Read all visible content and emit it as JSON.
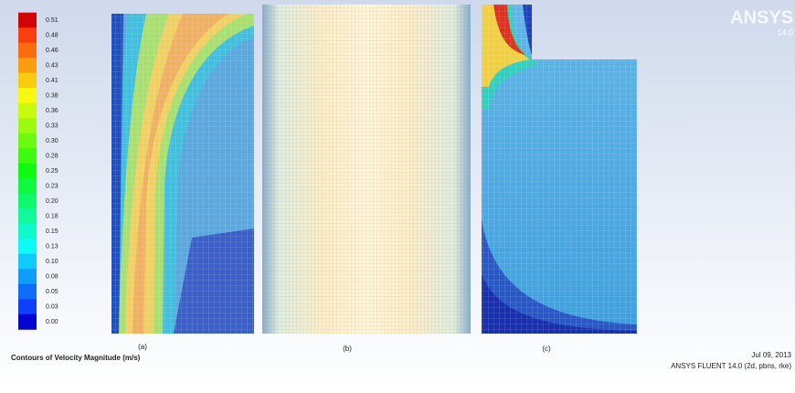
{
  "colorbar": {
    "labels": [
      "0.51",
      "0.48",
      "0.46",
      "0.43",
      "0.41",
      "0.38",
      "0.36",
      "0.33",
      "0.30",
      "0.28",
      "0.25",
      "0.23",
      "0.20",
      "0.18",
      "0.15",
      "0.13",
      "0.10",
      "0.08",
      "0.05",
      "0.03",
      "0.00"
    ]
  },
  "panels": [
    {
      "label": "(a)"
    },
    {
      "label": "(b)"
    },
    {
      "label": "(c)"
    }
  ],
  "footer": {
    "title": "Contours of Velocity Magnitude (m/s)",
    "date": "Jul 09, 2013",
    "software": "ANSYS FLUENT 14.0 (2d, pbns, rke)"
  },
  "logo": {
    "brand": "ANSYS",
    "version": "14.0"
  }
}
